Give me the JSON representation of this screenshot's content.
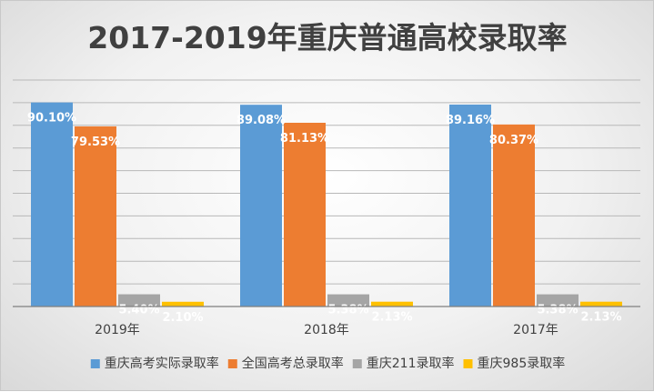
{
  "chart_data": {
    "type": "bar",
    "title": "2017-2019年重庆普通高校录取率",
    "categories": [
      "2019年",
      "2018年",
      "2017年"
    ],
    "series": [
      {
        "name": "重庆高考实际录取率",
        "values": [
          90.1,
          89.08,
          89.16
        ],
        "labels": [
          "90.10%",
          "89.08%",
          "89.16%"
        ],
        "color": "#5b9bd5"
      },
      {
        "name": "全国高考总录取率",
        "values": [
          79.53,
          81.13,
          80.37
        ],
        "labels": [
          "79.53%",
          "81.13%",
          "80.37%"
        ],
        "color": "#ed7d31"
      },
      {
        "name": "重庆211录取率",
        "values": [
          5.4,
          5.38,
          5.38
        ],
        "labels": [
          "5.40%",
          "5.38%",
          "5.38%"
        ],
        "color": "#a5a5a5"
      },
      {
        "name": "重庆985录取率",
        "values": [
          2.1,
          2.13,
          2.13
        ],
        "labels": [
          "2.10%",
          "2.13%",
          "2.13%"
        ],
        "color": "#ffc000"
      }
    ],
    "ylim": [
      0,
      100
    ],
    "grid": true,
    "legend": "bottom"
  }
}
